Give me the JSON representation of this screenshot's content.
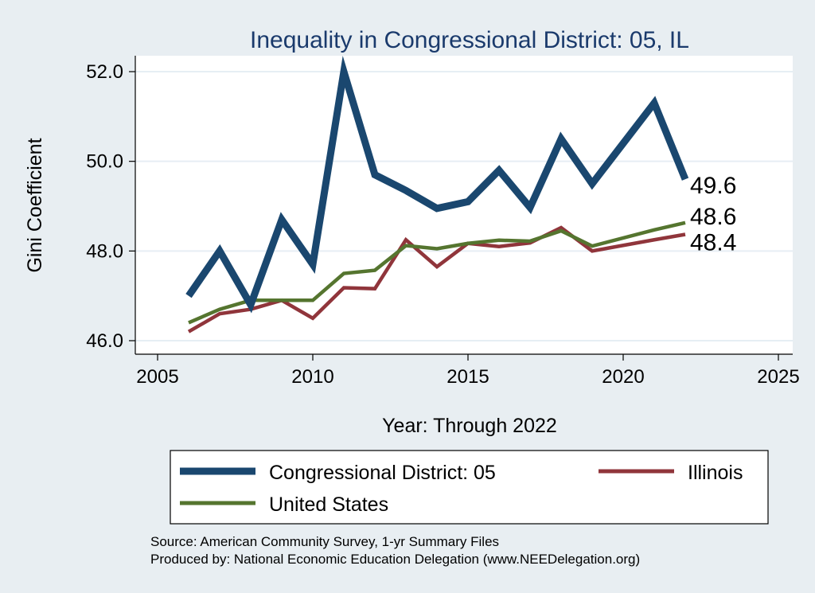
{
  "chart_data": {
    "type": "line",
    "title": "Inequality in Congressional District:  05, IL",
    "xlabel": "Year: Through 2022",
    "ylabel": "Gini Coefficient",
    "xlim": [
      2005,
      2025
    ],
    "ylim": [
      46.0,
      52.0
    ],
    "x_ticks": [
      2005,
      2010,
      2015,
      2020,
      2025
    ],
    "x_tick_labels": [
      "2005",
      "2010",
      "2015",
      "2020",
      "2025"
    ],
    "y_ticks": [
      46.0,
      48.0,
      50.0,
      52.0
    ],
    "y_tick_labels": [
      "46.0",
      "48.0",
      "50.0",
      "52.0"
    ],
    "grid": true,
    "legend_position": "bottom",
    "series": [
      {
        "name": "Congressional District:  05",
        "color": "#1a476f",
        "x": [
          2006,
          2007,
          2008,
          2009,
          2010,
          2011,
          2012,
          2013,
          2014,
          2015,
          2016,
          2017,
          2018,
          2019,
          2021,
          2022
        ],
        "values": [
          47.0,
          48.0,
          46.8,
          48.7,
          47.7,
          52.0,
          49.7,
          49.35,
          48.95,
          49.1,
          49.8,
          48.97,
          50.5,
          49.5,
          51.3,
          49.6
        ],
        "end_label": "49.6"
      },
      {
        "name": "Illinois",
        "color": "#90353b",
        "x": [
          2006,
          2007,
          2008,
          2009,
          2010,
          2011,
          2012,
          2013,
          2014,
          2015,
          2016,
          2017,
          2018,
          2019,
          2021,
          2022
        ],
        "values": [
          46.2,
          46.6,
          46.7,
          46.9,
          46.5,
          47.18,
          47.16,
          48.25,
          47.65,
          48.17,
          48.1,
          48.18,
          48.52,
          48.0,
          48.25,
          48.37
        ],
        "end_label": "48.4"
      },
      {
        "name": "United States",
        "color": "#55752f",
        "x": [
          2006,
          2007,
          2008,
          2009,
          2010,
          2011,
          2012,
          2013,
          2014,
          2015,
          2016,
          2017,
          2018,
          2019,
          2021,
          2022
        ],
        "values": [
          46.4,
          46.7,
          46.9,
          46.9,
          46.9,
          47.5,
          47.57,
          48.12,
          48.05,
          48.17,
          48.24,
          48.22,
          48.45,
          48.11,
          48.47,
          48.63
        ],
        "end_label": "48.6"
      }
    ]
  },
  "legend": {
    "items": [
      "Congressional District:  05",
      "Illinois",
      "United States"
    ]
  },
  "notes": {
    "source": "Source: American Community Survey, 1-yr Summary Files",
    "produced": "Produced by: National Economic Education Delegation (www.NEEDelegation.org)"
  }
}
